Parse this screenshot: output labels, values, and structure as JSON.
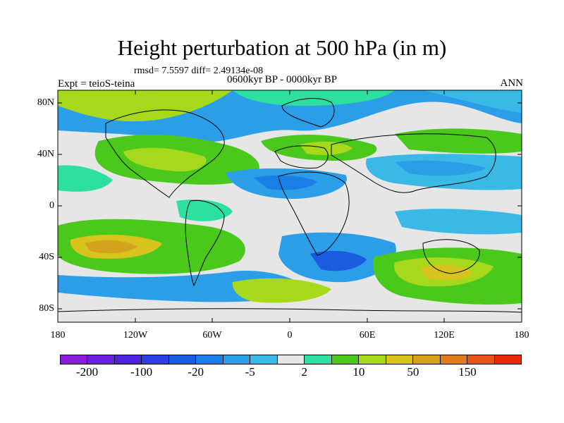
{
  "figure": {
    "title": "Height perturbation at 500 hPa (in m)",
    "stats": "rmsd= 7.5597 diff= 2.49134e-08",
    "experiment": "Expt = teioS-teina",
    "period": "0600kyr BP - 0000kyr BP",
    "season": "ANN"
  },
  "map": {
    "projection": "cylindrical equidistant",
    "lon_range": [
      -180,
      180
    ],
    "lat_range": [
      -90,
      90
    ],
    "lat_ticks": [
      {
        "value": 80,
        "label": "80N"
      },
      {
        "value": 40,
        "label": "40N"
      },
      {
        "value": 0,
        "label": "0"
      },
      {
        "value": -40,
        "label": "40S"
      },
      {
        "value": -80,
        "label": "80S"
      }
    ],
    "lon_ticks": [
      {
        "value": -180,
        "label": "180"
      },
      {
        "value": -120,
        "label": "120W"
      },
      {
        "value": -60,
        "label": "60W"
      },
      {
        "value": 0,
        "label": "0"
      },
      {
        "value": 60,
        "label": "60E"
      },
      {
        "value": 120,
        "label": "120E"
      },
      {
        "value": 180,
        "label": "180"
      }
    ]
  },
  "colorbar": {
    "colors": [
      "#8a1cd8",
      "#6a1ee0",
      "#4c22e0",
      "#2c3ee4",
      "#1a5ce0",
      "#1a7ee6",
      "#2c9ee8",
      "#3ab8e6",
      "#e6e6e6",
      "#2ee0a0",
      "#4ac81c",
      "#a6d81c",
      "#d8c41c",
      "#d4a21c",
      "#e07a1c",
      "#e85418",
      "#e82a0c"
    ],
    "labels": [
      {
        "index": 1,
        "text": "-200"
      },
      {
        "index": 3,
        "text": "-100"
      },
      {
        "index": 5,
        "text": "-20"
      },
      {
        "index": 7,
        "text": "-5"
      },
      {
        "index": 9,
        "text": "2"
      },
      {
        "index": 11,
        "text": "10"
      },
      {
        "index": 13,
        "text": "50"
      },
      {
        "index": 15,
        "text": "150"
      }
    ]
  }
}
